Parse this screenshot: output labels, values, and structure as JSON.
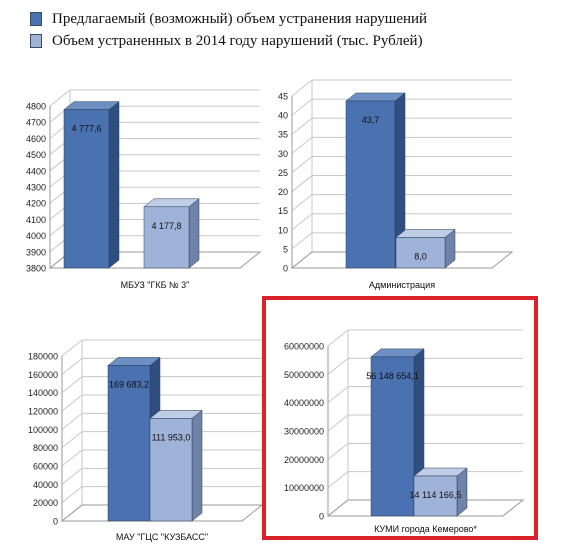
{
  "legend": {
    "items": [
      {
        "label": "Предлагаемый (возможный) объем устранения нарушений",
        "color": "#4a72b0"
      },
      {
        "label": "Объем устраненных в 2014 году нарушений (тыс. Рублей)",
        "color": "#9fb2d8"
      }
    ]
  },
  "colors": {
    "series1_front": "#4a72b0",
    "series1_side": "#2f4f80",
    "series1_top": "#6d8fc4",
    "series2_front": "#9fb2d8",
    "series2_side": "#6f82a8",
    "series2_top": "#c0cde6",
    "highlight": "#d8232a"
  },
  "chart_data": [
    {
      "type": "bar",
      "categories": [
        "МБУЗ \"ГКБ № 3\""
      ],
      "series": [
        {
          "values": [
            4777.6
          ],
          "labels": [
            "4 777,6"
          ]
        },
        {
          "values": [
            4177.8
          ],
          "labels": [
            "4 177,8"
          ]
        }
      ],
      "ylim": [
        3800,
        4800
      ],
      "ticks": [
        3800,
        3900,
        4000,
        4100,
        4200,
        4300,
        4400,
        4500,
        4600,
        4700,
        4800
      ],
      "grid": true
    },
    {
      "type": "bar",
      "categories": [
        "Администрация"
      ],
      "series": [
        {
          "values": [
            43.7
          ],
          "labels": [
            "43,7"
          ]
        },
        {
          "values": [
            8.0
          ],
          "labels": [
            "8,0"
          ]
        }
      ],
      "ylim": [
        0,
        45
      ],
      "ticks": [
        0,
        5,
        10,
        15,
        20,
        25,
        30,
        35,
        40,
        45
      ],
      "grid": true
    },
    {
      "type": "bar",
      "categories": [
        "МАУ \"ГЦС \"КУЗБАСС\""
      ],
      "series": [
        {
          "values": [
            169683.2
          ],
          "labels": [
            "169 683,2"
          ]
        },
        {
          "values": [
            111953.0
          ],
          "labels": [
            "111 953,0"
          ]
        }
      ],
      "ylim": [
        0,
        180000
      ],
      "ticks": [
        0,
        20000,
        40000,
        60000,
        80000,
        100000,
        120000,
        140000,
        160000,
        180000
      ],
      "grid": true
    },
    {
      "type": "bar",
      "categories": [
        "КУМИ города Кемерово*"
      ],
      "series": [
        {
          "values": [
            56148654.1
          ],
          "labels": [
            "56 148 654,1"
          ]
        },
        {
          "values": [
            14114166.5
          ],
          "labels": [
            "14 114 166,5"
          ]
        }
      ],
      "ylim": [
        0,
        60000000
      ],
      "ticks": [
        0,
        10000000,
        20000000,
        30000000,
        40000000,
        50000000,
        60000000
      ],
      "grid": true,
      "highlighted": true
    }
  ]
}
